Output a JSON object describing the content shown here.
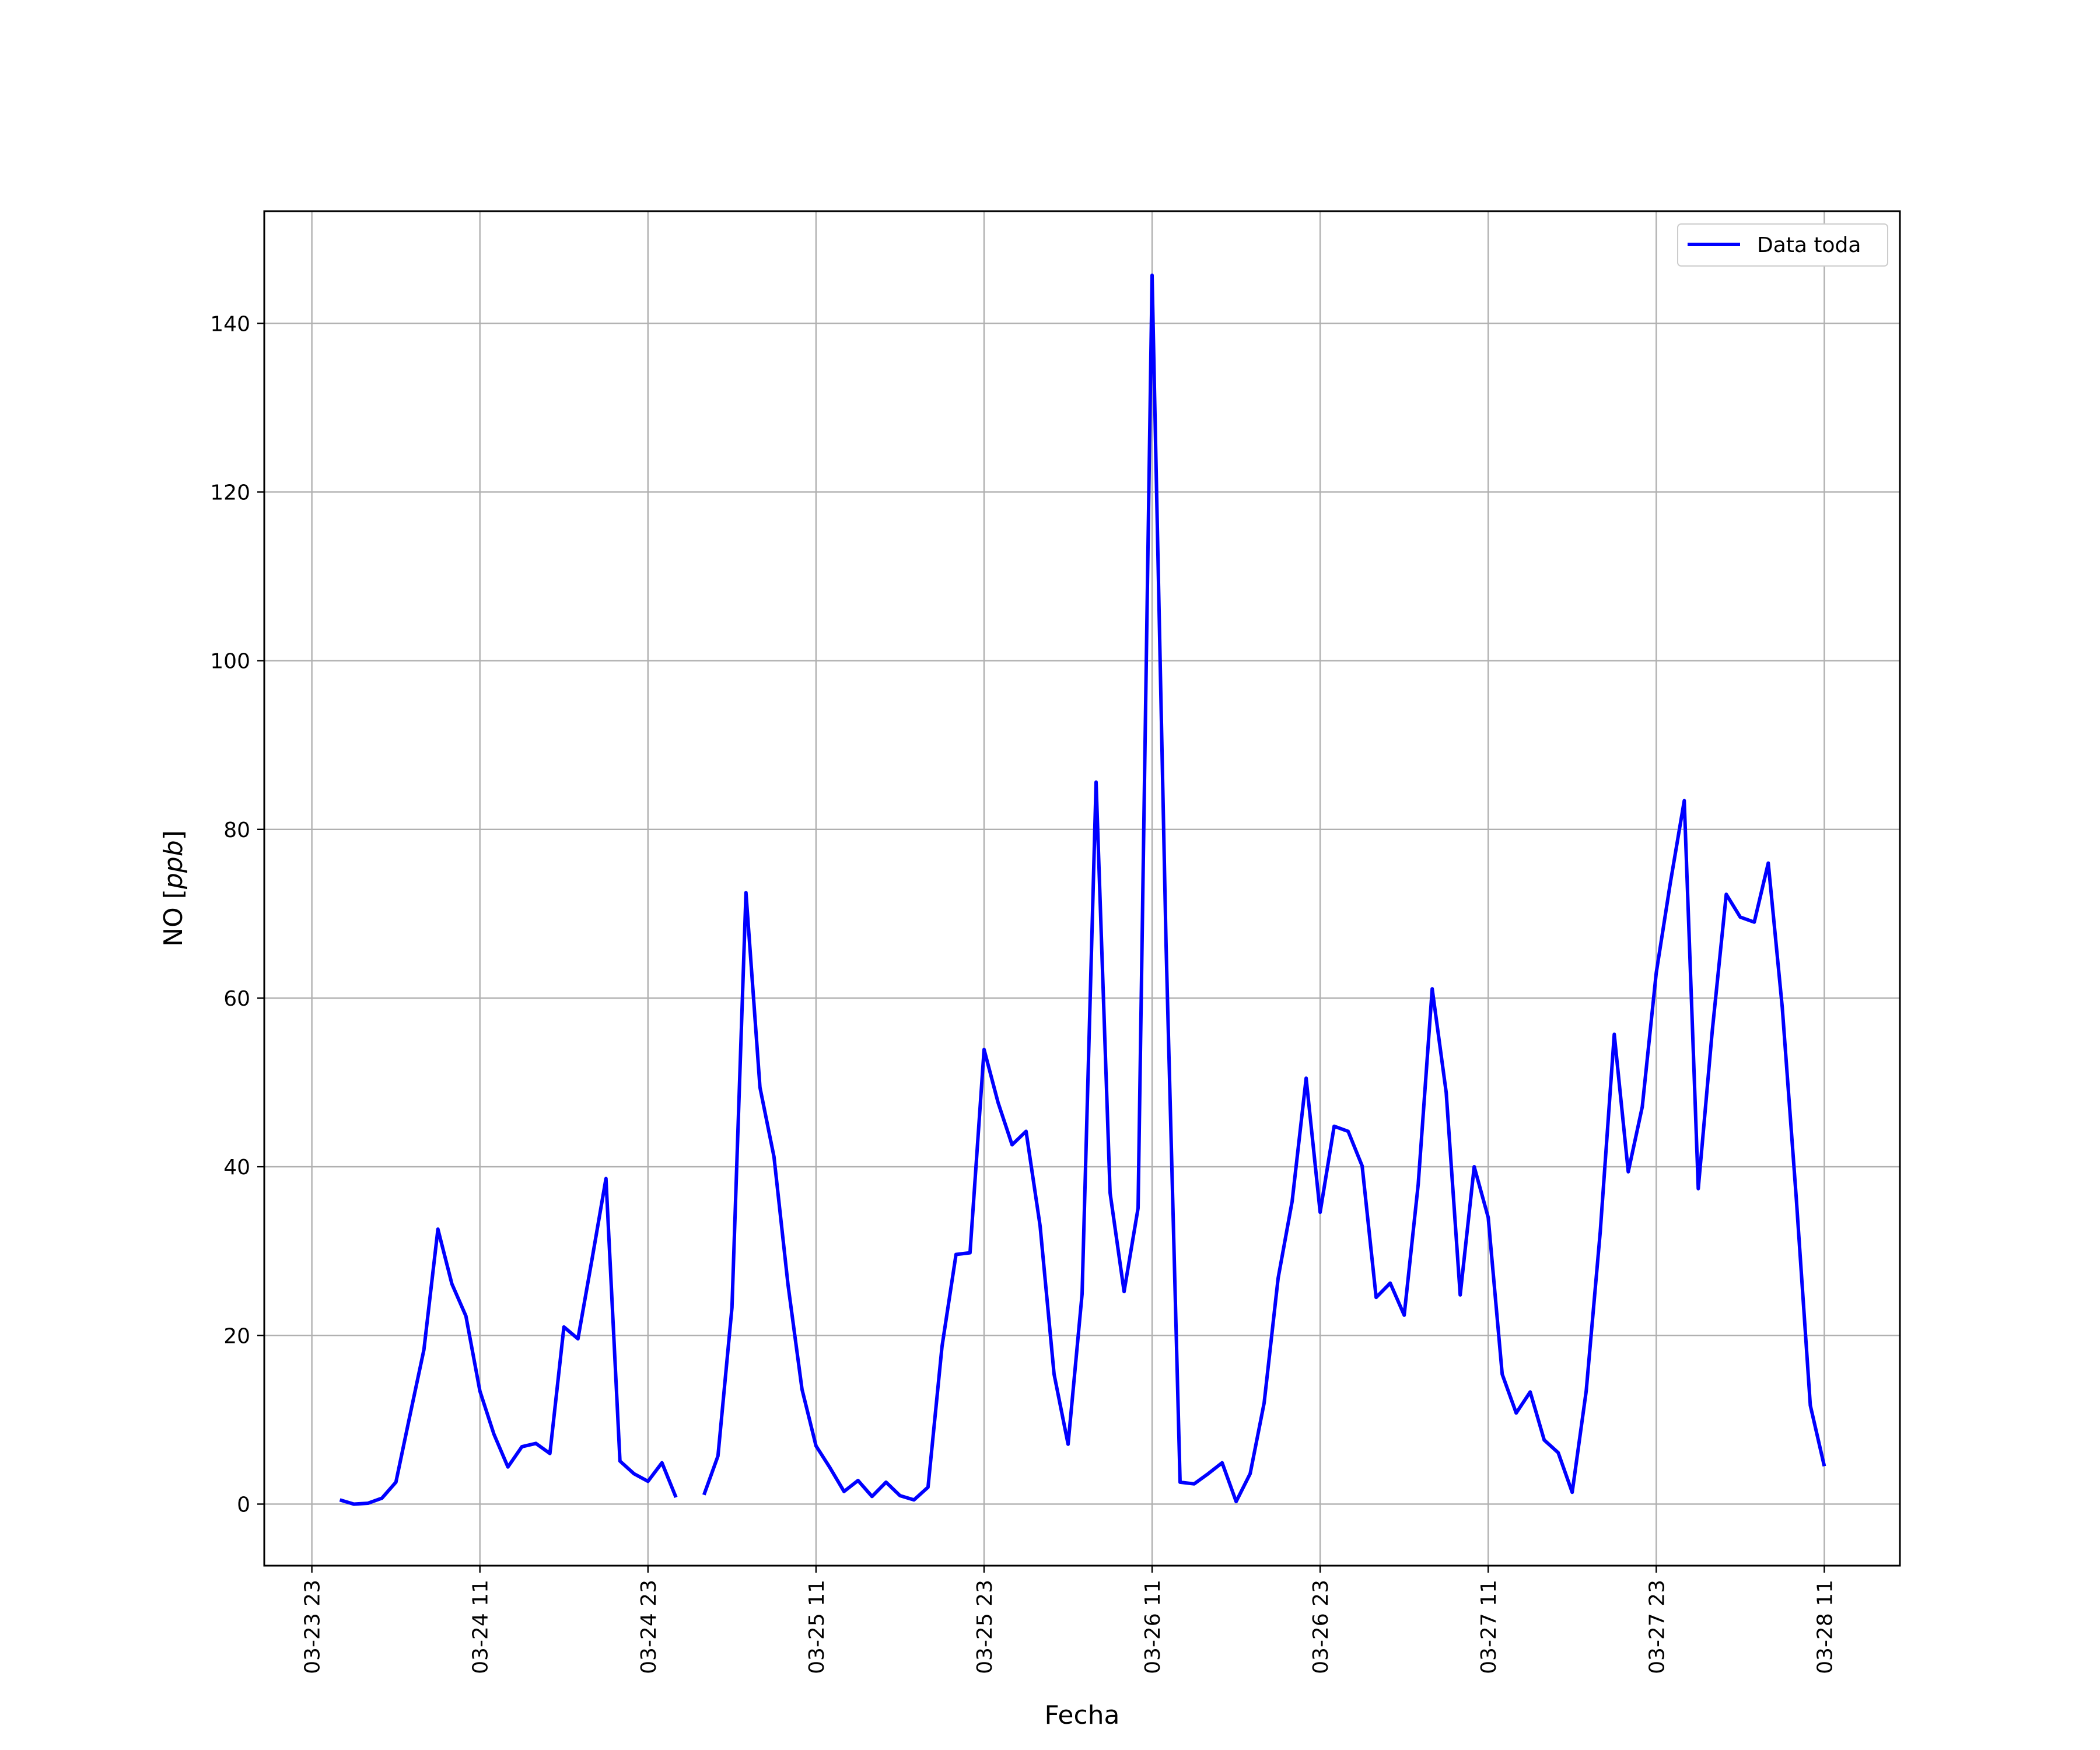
{
  "chart_data": {
    "type": "line",
    "xlabel": "Fecha",
    "ylabel": "NO [ppb]",
    "ylabel_parts": {
      "plain": "NO ",
      "open": "[",
      "italic": "ppb",
      "close": "]"
    },
    "x_unit": "hours",
    "x_ticks": [
      {
        "x": 0,
        "label": "03-23 23"
      },
      {
        "x": 12,
        "label": "03-24 11"
      },
      {
        "x": 24,
        "label": "03-24 23"
      },
      {
        "x": 36,
        "label": "03-25 11"
      },
      {
        "x": 48,
        "label": "03-25 23"
      },
      {
        "x": 60,
        "label": "03-26 11"
      },
      {
        "x": 72,
        "label": "03-26 23"
      },
      {
        "x": 84,
        "label": "03-27 11"
      },
      {
        "x": 96,
        "label": "03-27 23"
      },
      {
        "x": 108,
        "label": "03-28 11"
      }
    ],
    "y_ticks": [
      0,
      20,
      40,
      60,
      80,
      100,
      120,
      140
    ],
    "xlim": [
      -3.4,
      113.4
    ],
    "ylim": [
      -7.3,
      153.3
    ],
    "grid": true,
    "legend": {
      "position": "top-right",
      "entries": [
        "Data toda"
      ]
    },
    "series": [
      {
        "name": "Data toda",
        "color": "#0000ff",
        "points": [
          [
            2,
            0.5
          ],
          [
            3,
            0.0
          ],
          [
            4,
            0.1
          ],
          [
            5,
            0.7
          ],
          [
            6,
            2.6
          ],
          [
            7,
            10.5
          ],
          [
            8,
            18.3
          ],
          [
            9,
            32.6
          ],
          [
            10,
            26.1
          ],
          [
            11,
            22.3
          ],
          [
            12,
            13.4
          ],
          [
            13,
            8.3
          ],
          [
            14,
            4.4
          ],
          [
            15,
            6.8
          ],
          [
            16,
            7.2
          ],
          [
            17,
            6.0
          ],
          [
            18,
            21.0
          ],
          [
            19,
            19.6
          ],
          [
            20,
            29.0
          ],
          [
            21,
            38.6
          ],
          [
            22,
            5.1
          ],
          [
            23,
            3.6
          ],
          [
            24,
            2.7
          ],
          [
            25,
            4.9
          ],
          [
            26,
            0.8
          ],
          null,
          [
            28,
            1.1
          ],
          [
            29,
            5.7
          ],
          [
            30,
            23.3
          ],
          [
            31,
            72.5
          ],
          [
            32,
            49.4
          ],
          [
            33,
            41.2
          ],
          [
            34,
            26.0
          ],
          [
            35,
            13.6
          ],
          [
            36,
            6.9
          ],
          [
            37,
            4.3
          ],
          [
            38,
            1.5
          ],
          [
            39,
            2.8
          ],
          [
            40,
            0.9
          ],
          [
            41,
            2.6
          ],
          [
            42,
            1.0
          ],
          [
            43,
            0.5
          ],
          [
            44,
            2.0
          ],
          [
            45,
            18.7
          ],
          [
            46,
            29.6
          ],
          [
            47,
            29.8
          ],
          [
            48,
            53.9
          ],
          [
            49,
            47.6
          ],
          [
            50,
            42.6
          ],
          [
            51,
            44.2
          ],
          [
            52,
            33.0
          ],
          [
            53,
            15.4
          ],
          [
            54,
            7.1
          ],
          [
            55,
            24.9
          ],
          [
            56,
            85.6
          ],
          [
            57,
            36.9
          ],
          [
            58,
            25.2
          ],
          [
            59,
            35.1
          ],
          [
            60,
            145.7
          ],
          [
            61,
            66.2
          ],
          [
            62,
            2.6
          ],
          [
            63,
            2.4
          ],
          [
            64,
            3.6
          ],
          [
            65,
            4.9
          ],
          [
            66,
            0.3
          ],
          [
            67,
            3.6
          ],
          [
            68,
            12.0
          ],
          [
            69,
            26.8
          ],
          [
            70,
            35.9
          ],
          [
            71,
            50.5
          ],
          [
            72,
            34.6
          ],
          [
            73,
            44.8
          ],
          [
            74,
            44.2
          ],
          [
            75,
            40.1
          ],
          [
            76,
            24.5
          ],
          [
            77,
            26.2
          ],
          [
            78,
            22.4
          ],
          [
            79,
            37.9
          ],
          [
            80,
            61.1
          ],
          [
            81,
            48.8
          ],
          [
            82,
            24.8
          ],
          [
            83,
            40.0
          ],
          [
            84,
            34.0
          ],
          [
            85,
            15.4
          ],
          [
            86,
            10.8
          ],
          [
            87,
            13.3
          ],
          [
            88,
            7.6
          ],
          [
            89,
            6.1
          ],
          [
            90,
            1.4
          ],
          [
            91,
            13.4
          ],
          [
            92,
            32.3
          ],
          [
            93,
            55.7
          ],
          [
            94,
            39.4
          ],
          [
            95,
            47.1
          ],
          [
            96,
            63.0
          ],
          [
            97,
            73.6
          ],
          [
            98,
            83.4
          ],
          [
            99,
            37.4
          ],
          [
            100,
            56.1
          ],
          [
            101,
            72.3
          ],
          [
            102,
            69.6
          ],
          [
            103,
            69.0
          ],
          [
            104,
            76.0
          ],
          [
            105,
            58.9
          ],
          [
            106,
            36.3
          ],
          [
            107,
            11.7
          ],
          [
            108,
            4.5
          ]
        ]
      }
    ]
  }
}
